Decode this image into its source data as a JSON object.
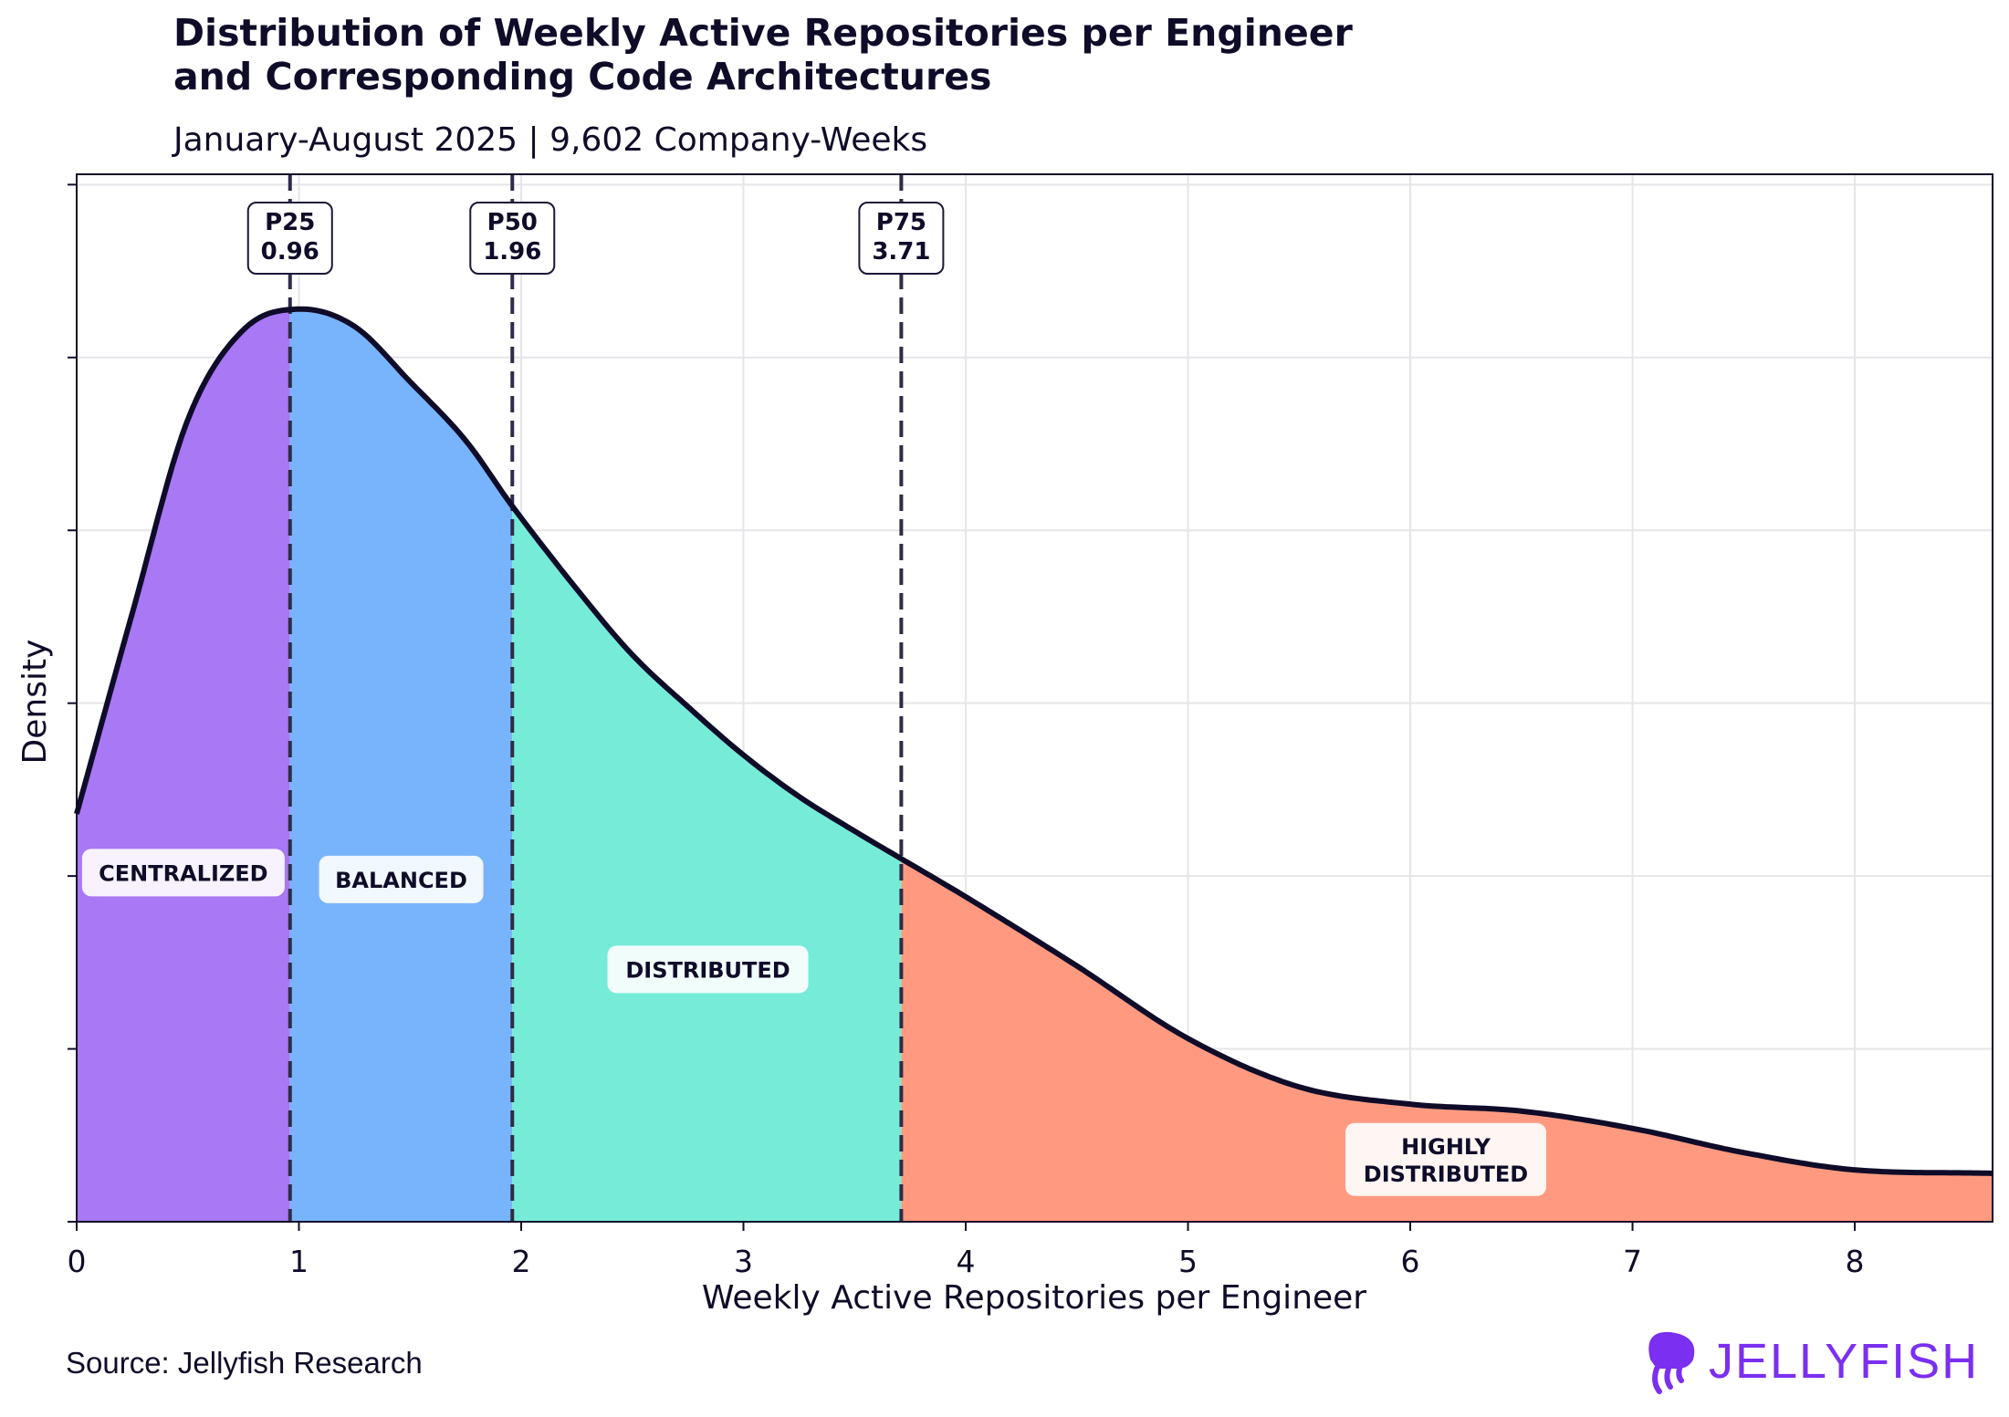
{
  "chart_data": {
    "type": "area",
    "title": "Distribution of Weekly Active Repositories per Engineer\nand Corresponding Code Architectures",
    "title_lines": [
      "Distribution of Weekly Active Repositories per Engineer",
      "and Corresponding Code Architectures"
    ],
    "subtitle": "January-August 2025 | 9,602 Company-Weeks",
    "xlabel": "Weekly Active Repositories per Engineer",
    "ylabel": "Density",
    "xlim": [
      0,
      8.62
    ],
    "ylim": [
      0,
      0.303
    ],
    "x_ticks": [
      0,
      1,
      2,
      3,
      4,
      5,
      6,
      7,
      8
    ],
    "y_ticks": [
      0,
      0.05,
      0.1,
      0.15,
      0.2,
      0.25,
      0.3
    ],
    "y_tick_labels_shown": false,
    "grid": true,
    "curve": {
      "x": [
        0,
        0.25,
        0.5,
        0.75,
        1.0,
        1.25,
        1.5,
        1.75,
        1.96,
        2.25,
        2.5,
        2.75,
        3.0,
        3.25,
        3.5,
        3.71,
        4.0,
        4.5,
        5.0,
        5.5,
        6.0,
        6.5,
        7.0,
        7.5,
        8.0,
        8.62
      ],
      "y": [
        0.118,
        0.176,
        0.232,
        0.258,
        0.264,
        0.259,
        0.243,
        0.226,
        0.207,
        0.183,
        0.164,
        0.149,
        0.135,
        0.123,
        0.113,
        0.105,
        0.094,
        0.074,
        0.053,
        0.039,
        0.034,
        0.032,
        0.027,
        0.02,
        0.015,
        0.014
      ],
      "color": "#0f0c29"
    },
    "percentiles": [
      {
        "label": "P25",
        "value": "0.96",
        "x": 0.96
      },
      {
        "label": "P50",
        "value": "1.96",
        "x": 1.96
      },
      {
        "label": "P75",
        "value": "3.71",
        "x": 3.71
      }
    ],
    "regions": [
      {
        "name": "CENTRALIZED",
        "lines": [
          "CENTRALIZED"
        ],
        "from": 0,
        "to": 0.96,
        "color": "#a878f5"
      },
      {
        "name": "BALANCED",
        "lines": [
          "BALANCED"
        ],
        "from": 0.96,
        "to": 1.96,
        "color": "#78b4fb"
      },
      {
        "name": "DISTRIBUTED",
        "lines": [
          "DISTRIBUTED"
        ],
        "from": 1.96,
        "to": 3.71,
        "color": "#76ecd8"
      },
      {
        "name": "HIGHLY DISTRIBUTED",
        "lines": [
          "HIGHLY",
          "DISTRIBUTED"
        ],
        "from": 3.71,
        "to": 8.62,
        "color": "#ff9a80"
      }
    ]
  },
  "footer": {
    "source": "Source: Jellyfish Research",
    "logo_text": "JELLYFISH",
    "logo_color": "#7b2ff0"
  }
}
